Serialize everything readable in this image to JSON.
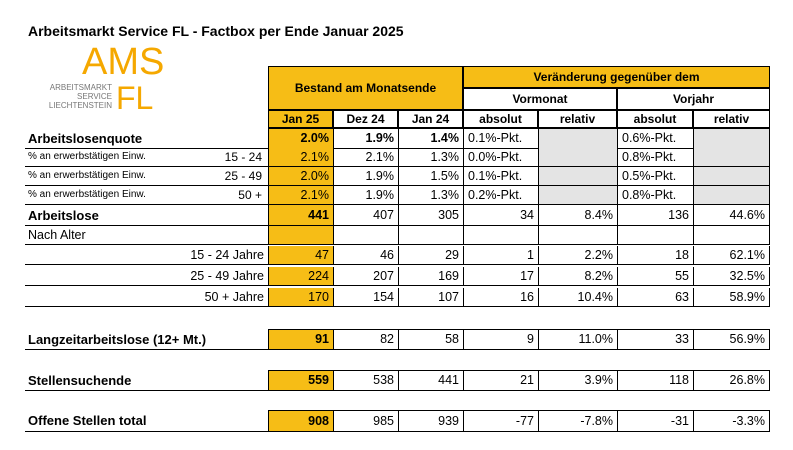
{
  "header": {
    "title": "Arbeitsmarkt Service FL - Factbox per Ende Januar 2025"
  },
  "logo": {
    "ams": "AMS",
    "fl": "FL",
    "lines": [
      "ARBEITSMARKT",
      "SERVICE",
      "LIECHTENSTEIN"
    ]
  },
  "table": {
    "groups": [
      "Bestand am Monatsende",
      "Veränderung gegenüber dem"
    ],
    "subgroups": [
      "Vormonat",
      "Vorjahr"
    ],
    "columns": [
      "Jan 25",
      "Dez 24",
      "Jan 24",
      "absolut",
      "relativ",
      "absolut",
      "relativ"
    ],
    "rows": [
      {
        "label": "Arbeitslosenquote",
        "cells": [
          "2.0%",
          "1.9%",
          "1.4%",
          "0.1%-Pkt.",
          null,
          "0.6%-Pkt.",
          null
        ]
      },
      {
        "label": "% an erwerbstätigen Einw.",
        "sub": "15 - 24",
        "cells": [
          "2.1%",
          "2.1%",
          "1.3%",
          "0.0%-Pkt.",
          null,
          "0.8%-Pkt.",
          null
        ]
      },
      {
        "label": "% an erwerbstätigen Einw.",
        "sub": "25 - 49",
        "cells": [
          "2.0%",
          "1.9%",
          "1.5%",
          "0.1%-Pkt.",
          null,
          "0.5%-Pkt.",
          null
        ]
      },
      {
        "label": "% an erwerbstätigen Einw.",
        "sub": "50 +",
        "cells": [
          "2.1%",
          "1.9%",
          "1.3%",
          "0.2%-Pkt.",
          null,
          "0.8%-Pkt.",
          null
        ]
      },
      {
        "label": "Arbeitslose",
        "cells": [
          "441",
          "407",
          "305",
          "34",
          "8.4%",
          "136",
          "44.6%"
        ]
      },
      {
        "label": "Nach Alter",
        "cells": [
          null,
          null,
          null,
          null,
          null,
          null,
          null
        ]
      },
      {
        "label": "15 - 24 Jahre",
        "cells": [
          "47",
          "46",
          "29",
          "1",
          "2.2%",
          "18",
          "62.1%"
        ]
      },
      {
        "label": "25 - 49 Jahre",
        "cells": [
          "224",
          "207",
          "169",
          "17",
          "8.2%",
          "55",
          "32.5%"
        ]
      },
      {
        "label": "50 + Jahre",
        "cells": [
          "170",
          "154",
          "107",
          "16",
          "10.4%",
          "63",
          "58.9%"
        ]
      },
      {
        "label": "Langzeitarbeitslose (12+ Mt.)",
        "cells": [
          "91",
          "82",
          "58",
          "9",
          "11.0%",
          "33",
          "56.9%"
        ]
      },
      {
        "label": "Stellensuchende",
        "cells": [
          "559",
          "538",
          "441",
          "21",
          "3.9%",
          "118",
          "26.8%"
        ]
      },
      {
        "label": "Offene Stellen total",
        "cells": [
          "908",
          "985",
          "939",
          "-77",
          "-7.8%",
          "-31",
          "-3.3%"
        ]
      }
    ]
  }
}
